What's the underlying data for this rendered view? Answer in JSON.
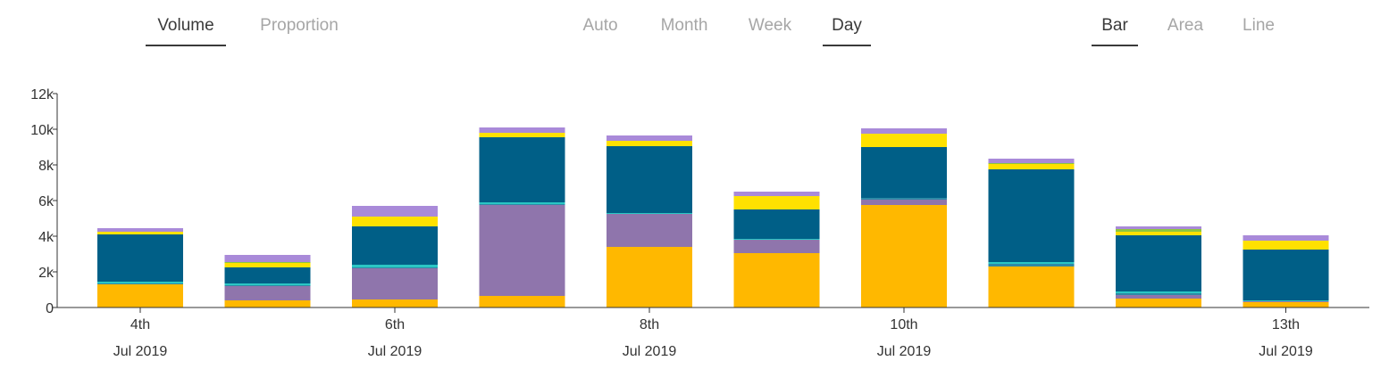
{
  "controls": {
    "measure": {
      "options": [
        "Volume",
        "Proportion"
      ],
      "selected": 0
    },
    "granularity": {
      "options": [
        "Auto",
        "Month",
        "Week",
        "Day"
      ],
      "selected": 3
    },
    "chart_type": {
      "options": [
        "Bar",
        "Area",
        "Line"
      ],
      "selected": 0
    }
  },
  "chart_data": {
    "type": "bar",
    "stacked": true,
    "categories": [
      "4th\nJul 2019",
      "",
      "6th\nJul 2019",
      "",
      "8th\nJul 2019",
      "",
      "10th\nJul 2019",
      "",
      "",
      "13th\nJul 2019"
    ],
    "x_tick_labels": [
      {
        "day": "4th",
        "month": "Jul 2019",
        "index": 0
      },
      {
        "day": "6th",
        "month": "Jul 2019",
        "index": 2
      },
      {
        "day": "8th",
        "month": "Jul 2019",
        "index": 4
      },
      {
        "day": "10th",
        "month": "Jul 2019",
        "index": 6
      },
      {
        "day": "13th",
        "month": "Jul 2019",
        "index": 9
      }
    ],
    "ylim": [
      0,
      12000
    ],
    "y_ticks": [
      0,
      2000,
      4000,
      6000,
      8000,
      10000,
      12000
    ],
    "y_tick_labels": [
      "0",
      "2k",
      "4k",
      "6k",
      "8k",
      "10k",
      "12k"
    ],
    "grid": false,
    "series": [
      {
        "color": "#ffb800",
        "values": [
          1300,
          400,
          450,
          650,
          3400,
          3050,
          5750,
          2300,
          500,
          300
        ]
      },
      {
        "color": "#8f75ac",
        "values": [
          0,
          800,
          1750,
          5100,
          1850,
          750,
          300,
          0,
          200,
          50
        ]
      },
      {
        "color": "#2f8aa6",
        "values": [
          50,
          50,
          50,
          50,
          0,
          0,
          100,
          150,
          100,
          0
        ]
      },
      {
        "color": "#2ac6c4",
        "values": [
          100,
          100,
          150,
          100,
          50,
          50,
          0,
          100,
          100,
          50
        ]
      },
      {
        "color": "#005f87",
        "values": [
          2650,
          900,
          2150,
          3650,
          3750,
          1650,
          2850,
          5200,
          3150,
          2850
        ]
      },
      {
        "color": "#ffe100",
        "values": [
          150,
          250,
          550,
          250,
          300,
          750,
          750,
          300,
          200,
          500
        ]
      },
      {
        "color": "#8dc63f",
        "values": [
          0,
          50,
          0,
          0,
          0,
          0,
          0,
          50,
          150,
          0
        ]
      },
      {
        "color": "#a98ad9",
        "values": [
          200,
          400,
          600,
          300,
          300,
          250,
          300,
          250,
          150,
          300
        ]
      }
    ]
  }
}
